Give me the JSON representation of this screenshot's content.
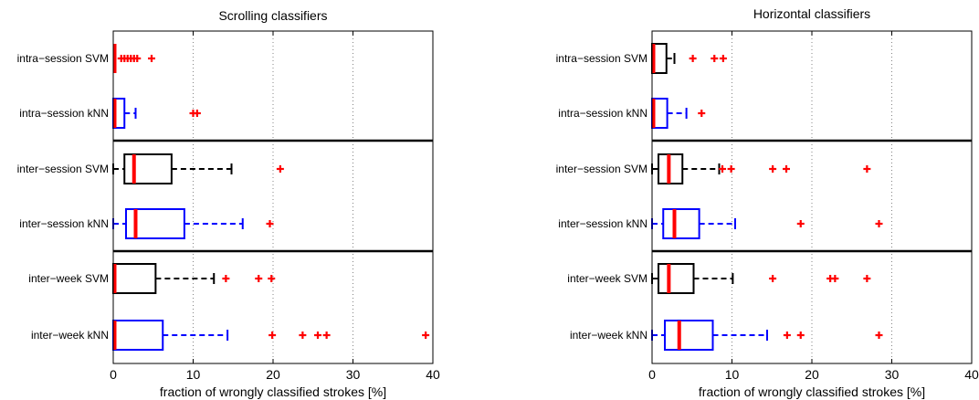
{
  "chart_data": [
    {
      "type": "boxplot",
      "title": "Scrolling classifiers",
      "xlabel": "fraction of wrongly classified strokes [%]",
      "xlim": [
        0,
        40
      ],
      "xticks": [
        0,
        10,
        20,
        30,
        40
      ],
      "grid": "vertical dotted",
      "groups": [
        {
          "label": "intra−session SVM",
          "color": "#000000",
          "min": 0,
          "q1": 0,
          "median": 0,
          "q3": 0,
          "max": 0,
          "outliers": [
            1.0,
            1.4,
            1.8,
            2.2,
            2.6,
            3.0,
            4.8
          ]
        },
        {
          "label": "intra−session kNN",
          "color": "#0000ff",
          "min": 0,
          "q1": 0,
          "median": 0,
          "q3": 1.4,
          "max": 2.8,
          "outliers": [
            10.0,
            10.5
          ]
        },
        {
          "label": "inter−session SVM",
          "color": "#000000",
          "min": 0,
          "q1": 1.4,
          "median": 2.6,
          "q3": 7.3,
          "max": 14.8,
          "outliers": [
            20.9
          ]
        },
        {
          "label": "inter−session kNN",
          "color": "#0000ff",
          "min": 0,
          "q1": 1.6,
          "median": 2.8,
          "q3": 8.9,
          "max": 16.2,
          "outliers": [
            19.6
          ]
        },
        {
          "label": "inter−week SVM",
          "color": "#000000",
          "min": 0,
          "q1": 0,
          "median": 0,
          "q3": 5.3,
          "max": 12.6,
          "outliers": [
            14.1,
            18.2,
            19.8
          ]
        },
        {
          "label": "inter−week kNN",
          "color": "#0000ff",
          "min": 0,
          "q1": 0,
          "median": 0,
          "q3": 6.2,
          "max": 14.3,
          "outliers": [
            19.9,
            23.7,
            25.6,
            26.7,
            39.1
          ]
        }
      ]
    },
    {
      "type": "boxplot",
      "title": "Horizontal classifiers",
      "xlabel": "fraction of wrongly classified strokes [%]",
      "xlim": [
        0,
        40
      ],
      "xticks": [
        0,
        10,
        20,
        30,
        40
      ],
      "grid": "vertical dotted",
      "groups": [
        {
          "label": "intra−session SVM",
          "color": "#000000",
          "min": 0,
          "q1": 0,
          "median": 0,
          "q3": 1.8,
          "max": 2.8,
          "outliers": [
            5.1,
            7.8,
            8.9
          ]
        },
        {
          "label": "intra−session kNN",
          "color": "#0000ff",
          "min": 0,
          "q1": 0,
          "median": 0,
          "q3": 1.9,
          "max": 4.3,
          "outliers": [
            6.2
          ]
        },
        {
          "label": "inter−session SVM",
          "color": "#000000",
          "min": 0,
          "q1": 0.8,
          "median": 2.1,
          "q3": 3.8,
          "max": 8.4,
          "outliers": [
            8.8,
            9.9,
            15.1,
            16.8,
            26.9
          ]
        },
        {
          "label": "inter−session kNN",
          "color": "#0000ff",
          "min": 0,
          "q1": 1.4,
          "median": 2.8,
          "q3": 5.9,
          "max": 10.4,
          "outliers": [
            18.6,
            28.4
          ]
        },
        {
          "label": "inter−week SVM",
          "color": "#000000",
          "min": 0,
          "q1": 0.8,
          "median": 2.1,
          "q3": 5.2,
          "max": 10.1,
          "outliers": [
            15.1,
            22.3,
            22.9,
            26.9
          ]
        },
        {
          "label": "inter−week kNN",
          "color": "#0000ff",
          "min": 0,
          "q1": 1.6,
          "median": 3.4,
          "q3": 7.6,
          "max": 14.4,
          "outliers": [
            16.9,
            18.6,
            28.4
          ]
        }
      ]
    }
  ]
}
